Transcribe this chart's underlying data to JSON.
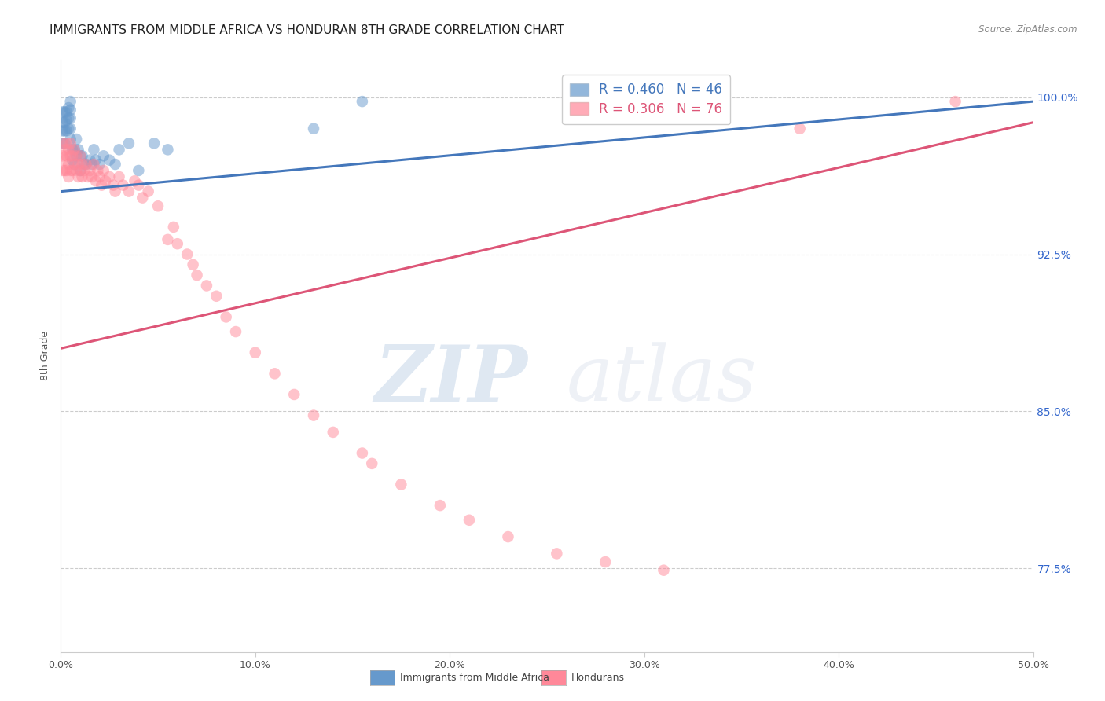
{
  "title": "IMMIGRANTS FROM MIDDLE AFRICA VS HONDURAN 8TH GRADE CORRELATION CHART",
  "source": "Source: ZipAtlas.com",
  "ylabel": "8th Grade",
  "ytick_labels": [
    "100.0%",
    "92.5%",
    "85.0%",
    "77.5%"
  ],
  "ytick_values": [
    1.0,
    0.925,
    0.85,
    0.775
  ],
  "xtick_labels": [
    "0.0%",
    "10.0%",
    "20.0%",
    "30.0%",
    "40.0%",
    "50.0%"
  ],
  "xtick_values": [
    0.0,
    0.1,
    0.2,
    0.3,
    0.4,
    0.5
  ],
  "xlim": [
    0.0,
    0.5
  ],
  "ylim": [
    0.735,
    1.018
  ],
  "blue_R": 0.46,
  "blue_N": 46,
  "pink_R": 0.306,
  "pink_N": 76,
  "legend_label_blue": "Immigrants from Middle Africa",
  "legend_label_pink": "Hondurans",
  "blue_scatter_x": [
    0.001,
    0.001,
    0.001,
    0.001,
    0.002,
    0.002,
    0.002,
    0.002,
    0.003,
    0.003,
    0.003,
    0.004,
    0.004,
    0.004,
    0.005,
    0.005,
    0.005,
    0.005,
    0.005,
    0.006,
    0.006,
    0.007,
    0.007,
    0.008,
    0.008,
    0.009,
    0.01,
    0.01,
    0.011,
    0.012,
    0.013,
    0.015,
    0.016,
    0.017,
    0.018,
    0.02,
    0.022,
    0.025,
    0.028,
    0.03,
    0.035,
    0.04,
    0.048,
    0.055,
    0.13,
    0.155
  ],
  "blue_scatter_y": [
    0.993,
    0.988,
    0.984,
    0.978,
    0.993,
    0.988,
    0.984,
    0.978,
    0.993,
    0.989,
    0.984,
    0.995,
    0.99,
    0.985,
    0.998,
    0.994,
    0.99,
    0.985,
    0.98,
    0.975,
    0.97,
    0.975,
    0.968,
    0.98,
    0.972,
    0.975,
    0.972,
    0.965,
    0.972,
    0.968,
    0.968,
    0.97,
    0.968,
    0.975,
    0.97,
    0.968,
    0.972,
    0.97,
    0.968,
    0.975,
    0.978,
    0.965,
    0.978,
    0.975,
    0.985,
    0.998
  ],
  "pink_scatter_x": [
    0.001,
    0.001,
    0.001,
    0.002,
    0.002,
    0.002,
    0.003,
    0.003,
    0.003,
    0.004,
    0.004,
    0.004,
    0.005,
    0.005,
    0.005,
    0.006,
    0.006,
    0.007,
    0.007,
    0.008,
    0.008,
    0.009,
    0.009,
    0.01,
    0.01,
    0.011,
    0.011,
    0.012,
    0.013,
    0.014,
    0.015,
    0.016,
    0.017,
    0.018,
    0.019,
    0.02,
    0.021,
    0.022,
    0.023,
    0.025,
    0.027,
    0.028,
    0.03,
    0.032,
    0.035,
    0.038,
    0.04,
    0.042,
    0.045,
    0.05,
    0.055,
    0.058,
    0.06,
    0.065,
    0.068,
    0.07,
    0.075,
    0.08,
    0.085,
    0.09,
    0.1,
    0.11,
    0.12,
    0.13,
    0.14,
    0.155,
    0.16,
    0.175,
    0.195,
    0.21,
    0.23,
    0.255,
    0.28,
    0.31,
    0.38,
    0.46
  ],
  "pink_scatter_y": [
    0.978,
    0.972,
    0.965,
    0.975,
    0.97,
    0.965,
    0.978,
    0.972,
    0.965,
    0.975,
    0.968,
    0.962,
    0.978,
    0.972,
    0.965,
    0.972,
    0.965,
    0.975,
    0.968,
    0.972,
    0.965,
    0.968,
    0.962,
    0.972,
    0.965,
    0.968,
    0.962,
    0.965,
    0.968,
    0.962,
    0.965,
    0.962,
    0.968,
    0.96,
    0.965,
    0.962,
    0.958,
    0.965,
    0.96,
    0.962,
    0.958,
    0.955,
    0.962,
    0.958,
    0.955,
    0.96,
    0.958,
    0.952,
    0.955,
    0.948,
    0.932,
    0.938,
    0.93,
    0.925,
    0.92,
    0.915,
    0.91,
    0.905,
    0.895,
    0.888,
    0.878,
    0.868,
    0.858,
    0.848,
    0.84,
    0.83,
    0.825,
    0.815,
    0.805,
    0.798,
    0.79,
    0.782,
    0.778,
    0.774,
    0.985,
    0.998
  ],
  "blue_line_x": [
    0.0,
    0.5
  ],
  "blue_line_y": [
    0.955,
    0.998
  ],
  "pink_line_x": [
    0.0,
    0.5
  ],
  "pink_line_y": [
    0.88,
    0.988
  ],
  "watermark_zip": "ZIP",
  "watermark_atlas": "atlas",
  "bg_color": "#ffffff",
  "blue_scatter_color": "#6699cc",
  "pink_scatter_color": "#ff8899",
  "blue_line_color": "#4477bb",
  "pink_line_color": "#dd5577",
  "title_fontsize": 11,
  "axis_label_fontsize": 9,
  "tick_fontsize": 9,
  "legend_fontsize": 12,
  "right_tick_color": "#3366cc"
}
